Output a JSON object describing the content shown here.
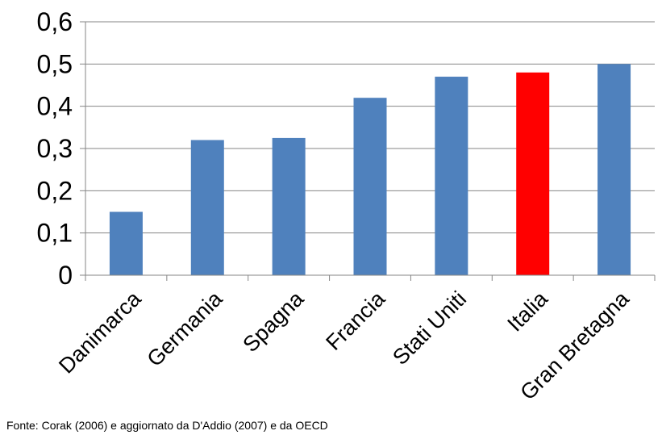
{
  "chart_data": {
    "type": "bar",
    "categories": [
      "Danimarca",
      "Germania",
      "Spagna",
      "Francia",
      "Stati Uniti",
      "Italia",
      "Gran Bretagna"
    ],
    "values": [
      0.15,
      0.32,
      0.325,
      0.42,
      0.47,
      0.48,
      0.5
    ],
    "highlight_category": "Italia",
    "colors": {
      "bar": "#4F81BD",
      "highlight": "#FF0000",
      "grid": "#868686",
      "axis": "#868686"
    },
    "ylim": [
      0,
      0.6
    ],
    "yticks": [
      0,
      0.1,
      0.2,
      0.3,
      0.4,
      0.5,
      0.6
    ],
    "ytick_labels": [
      "0",
      "0,1",
      "0,2",
      "0,3",
      "0,4",
      "0,5",
      "0,6"
    ],
    "grid": true,
    "title": "",
    "xlabel": "",
    "ylabel": ""
  },
  "source_note": "Fonte: Corak (2006) e aggiornato da D'Addio (2007) e da OECD"
}
